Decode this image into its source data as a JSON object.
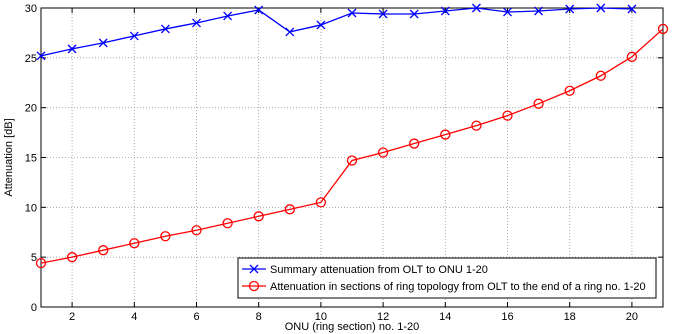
{
  "chart_data": {
    "type": "line",
    "title": "",
    "xlabel": "ONU (ring section) no. 1-20",
    "ylabel": "Attenuation [dB]",
    "xlim": [
      1,
      21
    ],
    "ylim": [
      0,
      30
    ],
    "xticks": [
      2,
      4,
      6,
      8,
      10,
      12,
      14,
      16,
      18,
      20
    ],
    "yticks": [
      0,
      5,
      10,
      15,
      20,
      25,
      30
    ],
    "grid": true,
    "legend_position": "bottom-right",
    "series": [
      {
        "name": "Summary attenuation from OLT to ONU 1-20",
        "color": "#0000ff",
        "marker": "x",
        "x": [
          1,
          2,
          3,
          4,
          5,
          6,
          7,
          8,
          9,
          10,
          11,
          12,
          13,
          14,
          15,
          16,
          17,
          18,
          19,
          20
        ],
        "y": [
          25.2,
          25.9,
          26.5,
          27.2,
          27.9,
          28.5,
          29.2,
          29.8,
          27.6,
          28.3,
          29.5,
          29.4,
          29.4,
          29.7,
          30.0,
          29.6,
          29.7,
          29.9,
          30.0,
          29.9
        ]
      },
      {
        "name": "Attenuation in sections of ring topology from OLT to the end of a ring no. 1-20",
        "color": "#ff0000",
        "marker": "o",
        "x": [
          1,
          2,
          3,
          4,
          5,
          6,
          7,
          8,
          9,
          10,
          11,
          12,
          13,
          14,
          15,
          16,
          17,
          18,
          19,
          20,
          21
        ],
        "y": [
          4.4,
          5.0,
          5.7,
          6.4,
          7.1,
          7.7,
          8.4,
          9.1,
          9.8,
          10.5,
          14.7,
          15.5,
          16.4,
          17.3,
          18.2,
          19.2,
          20.4,
          21.7,
          23.2,
          25.1,
          27.9
        ]
      }
    ]
  }
}
